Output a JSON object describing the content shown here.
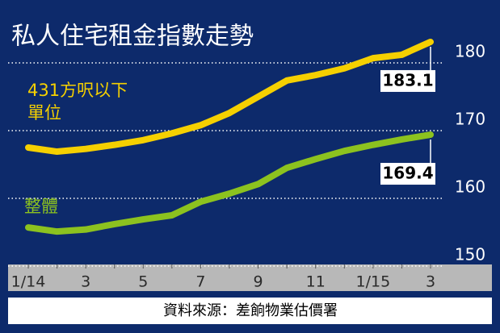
{
  "chart_data": {
    "type": "line",
    "title": "私人住宅租金指數走勢",
    "source": "資料來源：差餉物業估價署",
    "categories": [
      "1/14",
      null,
      "3",
      null,
      "5",
      null,
      "7",
      null,
      "9",
      null,
      "11",
      null,
      "1/15",
      null,
      "3"
    ],
    "series": [
      {
        "name": "431方呎以下\n單位",
        "color": "#f5d000",
        "values": [
          167.5,
          166.9,
          167.3,
          167.9,
          168.6,
          169.6,
          170.8,
          172.6,
          175.0,
          177.4,
          178.2,
          179.2,
          180.7,
          181.2,
          183.1
        ]
      },
      {
        "name": "整體",
        "color": "#8cc21f",
        "values": [
          155.7,
          155.1,
          155.4,
          156.2,
          156.9,
          157.5,
          159.5,
          160.7,
          162.1,
          164.5,
          165.8,
          167.0,
          167.9,
          168.7,
          169.4
        ]
      }
    ],
    "ylim": [
      150,
      186
    ],
    "yticks": [
      150,
      160,
      170,
      180
    ],
    "grid": true
  }
}
